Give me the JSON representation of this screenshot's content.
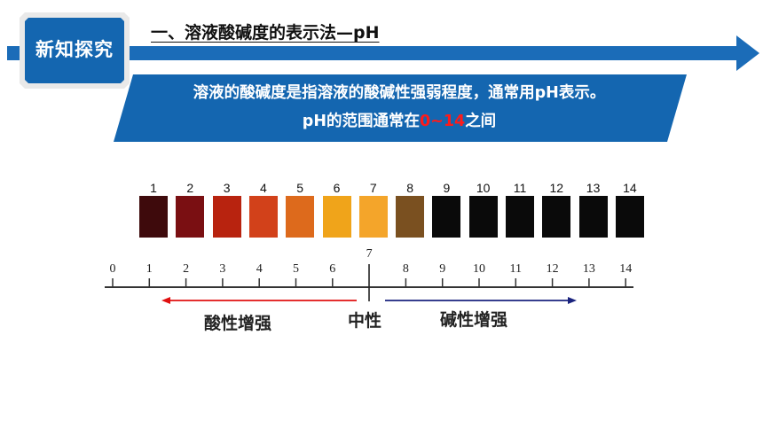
{
  "badge": {
    "label": "新知探究"
  },
  "title": "一、溶液酸碱度的表示法—pH",
  "banner": {
    "line1": "溶液的酸碱度是指溶液的酸碱性强弱程度，通常用pH表示。",
    "line2_prefix": "pH的范围通常在",
    "line2_range": "0~14",
    "line2_suffix": "之间",
    "range_color": "#ff1a1a",
    "banner_color": "#1466b0"
  },
  "color_chart": {
    "numbers": [
      "1",
      "2",
      "3",
      "4",
      "5",
      "6",
      "7",
      "8",
      "9",
      "10",
      "11",
      "12",
      "13",
      "14"
    ],
    "colors": [
      "#3e0a0c",
      "#7a0f12",
      "#b8230f",
      "#d2411a",
      "#dd6a1c",
      "#f0a41a",
      "#f4a52a",
      "#7a5020",
      "#0a0a0a",
      "#0a0a0a",
      "#0a0a0a",
      "#0a0a0a",
      "#0a0a0a",
      "#0a0a0a"
    ]
  },
  "scale": {
    "ticks": [
      "0",
      "1",
      "2",
      "3",
      "4",
      "5",
      "6",
      "7",
      "8",
      "9",
      "10",
      "11",
      "12",
      "13",
      "14"
    ],
    "acid_label": "酸性增强",
    "neutral_label": "中性",
    "base_label": "碱性增强",
    "acid_arrow_color": "#e01010",
    "base_arrow_color": "#1a237e"
  },
  "colors": {
    "brand_blue": "#1466b0",
    "arrow_blue": "#1b6cb8"
  }
}
